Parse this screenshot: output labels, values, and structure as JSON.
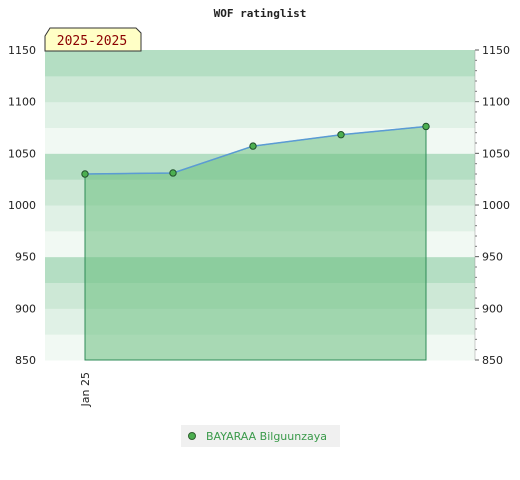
{
  "chart_data": {
    "type": "area",
    "title": "WOF ratinglist",
    "badge": "2025-2025",
    "x_tick_labels": [
      "Jan 25"
    ],
    "ylim": [
      850,
      1150
    ],
    "yticks": [
      850,
      900,
      950,
      1000,
      1050,
      1100,
      1150
    ],
    "y_axis_both_sides": true,
    "series": [
      {
        "name": "BAYARAA Bilguunzaya",
        "values": [
          1030,
          1031,
          1057,
          1068,
          1076
        ]
      }
    ],
    "legend_position": "bottom-center",
    "colors": {
      "fill": "#6bbf80",
      "line": "#5b9bd5",
      "marker": "#4caf50",
      "band_dark": "#b4dec3",
      "band_mid": "#cde8d6",
      "band_light": "#e0f1e6",
      "band_lightest": "#f1f9f3",
      "badge_bg": "#ffffc6",
      "badge_text": "#8b0000",
      "legend_text": "#3a9a4a"
    }
  }
}
